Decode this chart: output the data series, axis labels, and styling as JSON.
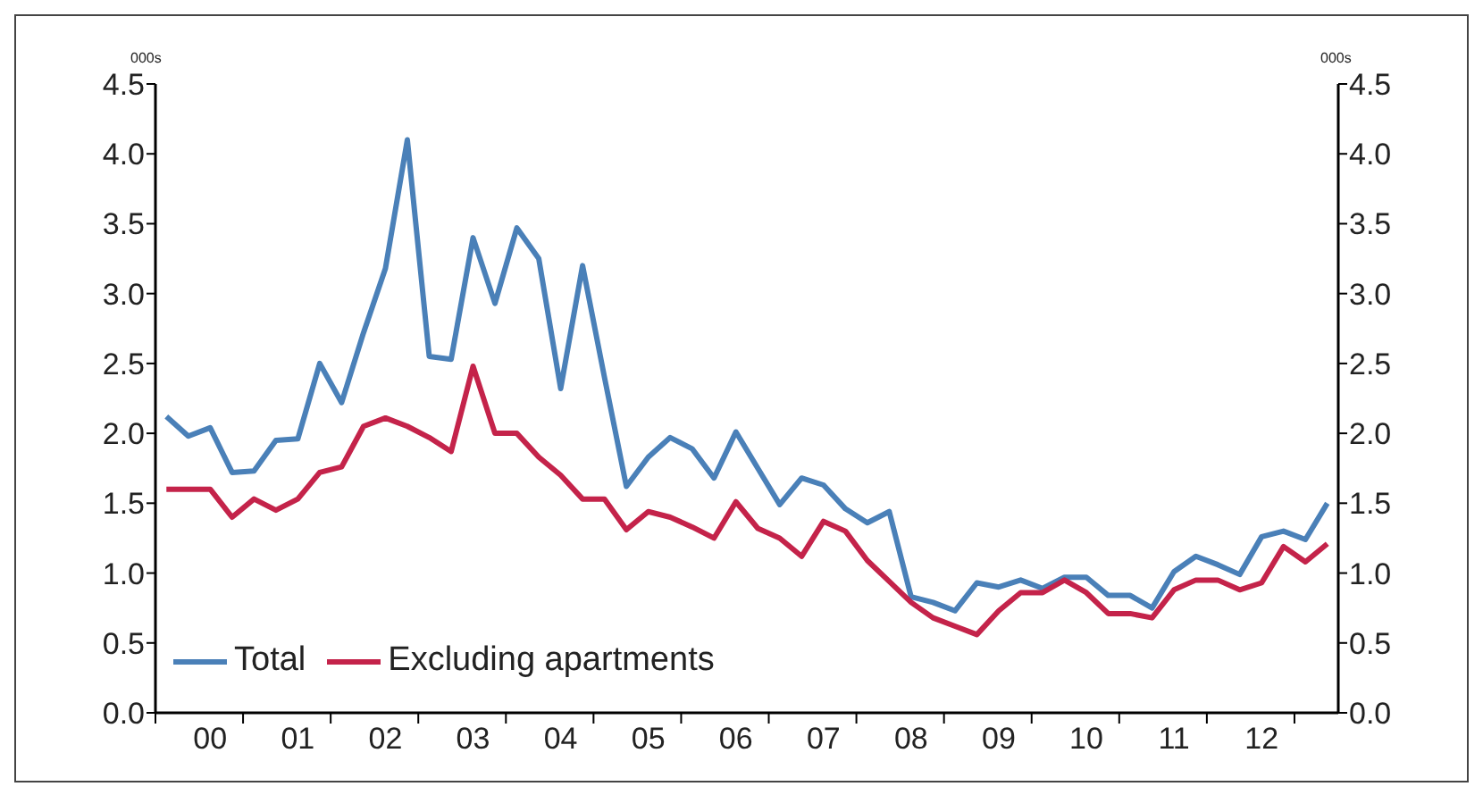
{
  "chart_data": {
    "type": "line",
    "ylabel": "000s",
    "y2label": "000s",
    "categories": [
      null,
      null,
      "00",
      null,
      null,
      null,
      "01",
      null,
      null,
      null,
      "02",
      null,
      null,
      null,
      "03",
      null,
      null,
      null,
      "04",
      null,
      null,
      null,
      "05",
      null,
      null,
      null,
      "06",
      null,
      null,
      null,
      "07",
      null,
      null,
      null,
      "08",
      null,
      null,
      null,
      "09",
      null,
      null,
      null,
      "10",
      null,
      null,
      null,
      "11",
      null,
      null,
      null,
      "12",
      null,
      null,
      null
    ],
    "series": [
      {
        "name": "Total",
        "color": "#4a80b8",
        "values": [
          2.12,
          1.98,
          2.04,
          1.72,
          1.73,
          1.95,
          1.96,
          2.5,
          2.22,
          2.72,
          3.18,
          4.1,
          2.55,
          2.53,
          3.4,
          2.93,
          3.47,
          3.25,
          2.32,
          3.2,
          2.4,
          1.62,
          1.83,
          1.97,
          1.89,
          1.68,
          2.01,
          1.75,
          1.49,
          1.68,
          1.63,
          1.46,
          1.36,
          1.44,
          0.83,
          0.79,
          0.73,
          0.93,
          0.9,
          0.95,
          0.89,
          0.97,
          0.97,
          0.84,
          0.84,
          0.75,
          1.01,
          1.12,
          1.06,
          0.99,
          1.26,
          1.3,
          1.24,
          1.5
        ]
      },
      {
        "name": "Excluding apartments",
        "color": "#c4234a",
        "values": [
          1.6,
          1.6,
          1.6,
          1.4,
          1.53,
          1.45,
          1.53,
          1.72,
          1.76,
          2.05,
          2.11,
          2.05,
          1.97,
          1.87,
          2.48,
          2.0,
          2.0,
          1.83,
          1.7,
          1.53,
          1.53,
          1.31,
          1.44,
          1.4,
          1.33,
          1.25,
          1.51,
          1.32,
          1.25,
          1.12,
          1.37,
          1.3,
          1.09,
          0.94,
          0.79,
          0.68,
          0.62,
          0.56,
          0.73,
          0.86,
          0.86,
          0.95,
          0.86,
          0.71,
          0.71,
          0.68,
          0.88,
          0.95,
          0.95,
          0.88,
          0.93,
          1.19,
          1.08,
          1.21
        ]
      }
    ],
    "ylim": [
      0,
      4.5
    ],
    "yticks": [
      {
        "value": 0,
        "label": "0.0"
      },
      {
        "value": 0.5,
        "label": "0.5"
      },
      {
        "value": 1,
        "label": "1.0"
      },
      {
        "value": 1.5,
        "label": "1.5"
      },
      {
        "value": 2,
        "label": "2.0"
      },
      {
        "value": 2.5,
        "label": "2.5"
      },
      {
        "value": 3,
        "label": "3.0"
      },
      {
        "value": 3.5,
        "label": "3.5"
      },
      {
        "value": 4,
        "label": "4.0"
      },
      {
        "value": 4.5,
        "label": "4.5"
      }
    ],
    "y2lim": [
      0,
      4.5
    ],
    "y2ticks": [
      {
        "value": 0,
        "label": "0.0"
      },
      {
        "value": 0.5,
        "label": "0.5"
      },
      {
        "value": 1,
        "label": "1.0"
      },
      {
        "value": 1.5,
        "label": "1.5"
      },
      {
        "value": 2,
        "label": "2.0"
      },
      {
        "value": 2.5,
        "label": "2.5"
      },
      {
        "value": 3,
        "label": "3.0"
      },
      {
        "value": 3.5,
        "label": "3.5"
      },
      {
        "value": 4,
        "label": "4.0"
      },
      {
        "value": 4.5,
        "label": "4.5"
      }
    ],
    "legend": "bottom left",
    "grid": false,
    "marker": "none",
    "line_style": "solid"
  }
}
